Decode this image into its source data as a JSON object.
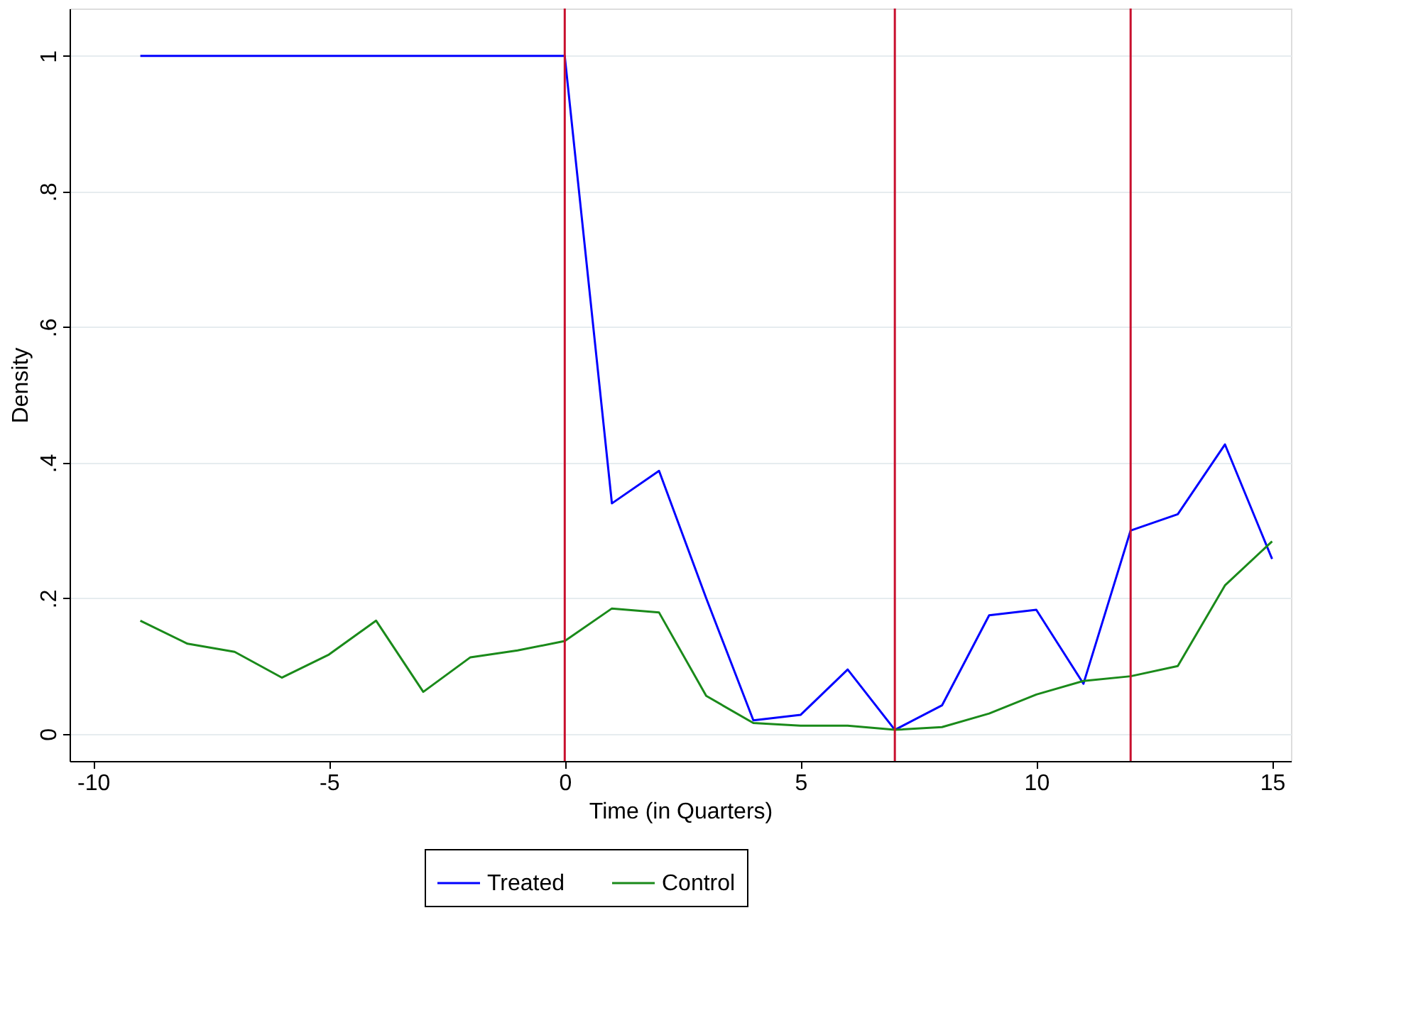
{
  "chart_data": {
    "type": "line",
    "xlabel": "Time (in Quarters)",
    "ylabel": "Density",
    "x": [
      -9,
      -8,
      -7,
      -6,
      -5,
      -4,
      -3,
      -2,
      -1,
      0,
      1,
      2,
      3,
      4,
      5,
      6,
      7,
      8,
      9,
      10,
      11,
      12,
      13,
      14,
      15
    ],
    "series": [
      {
        "name": "Treated",
        "color": "#0000ff",
        "values": [
          1,
          1,
          1,
          1,
          1,
          1,
          1,
          1,
          1,
          1,
          0.34,
          0.388,
          0.2,
          0.02,
          0.028,
          0.095,
          0.006,
          0.042,
          0.175,
          0.183,
          0.074,
          0.3,
          0.324,
          0.427,
          0.258
        ]
      },
      {
        "name": "Control",
        "color": "#1a8a1a",
        "values": [
          0.167,
          0.133,
          0.121,
          0.083,
          0.117,
          0.167,
          0.062,
          0.113,
          0.123,
          0.137,
          0.185,
          0.179,
          0.056,
          0.016,
          0.012,
          0.012,
          0.006,
          0.01,
          0.03,
          0.058,
          0.078,
          0.085,
          0.1,
          0.219,
          0.284
        ]
      }
    ],
    "xlim": [
      -10.5,
      15.4
    ],
    "xticks": [
      -10,
      -5,
      0,
      5,
      10,
      15
    ],
    "ylim": [
      -0.04,
      1.07
    ],
    "yticks": [
      0,
      {
        "value": 0.2,
        "label": ".2"
      },
      {
        "value": 0.4,
        "label": ".4"
      },
      {
        "value": 0.6,
        "label": ".6"
      },
      {
        "value": 0.8,
        "label": ".8"
      },
      1
    ],
    "ref_lines": [
      {
        "axis": "x",
        "value": 0,
        "color": "#c8102e"
      },
      {
        "axis": "x",
        "value": 7,
        "color": "#c8102e"
      },
      {
        "axis": "x",
        "value": 12,
        "color": "#c8102e"
      }
    ],
    "grid": "y",
    "legend": "bottom",
    "marker": "none",
    "line_style": "solid"
  }
}
